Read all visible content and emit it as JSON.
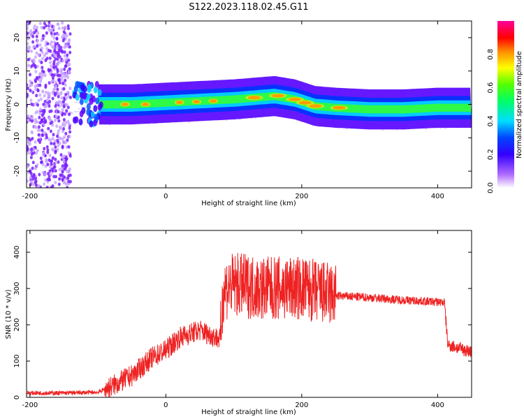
{
  "title": "S122.2023.118.02.45.G11",
  "chart_data": [
    {
      "type": "heatmap",
      "xlabel": "Height of straight line (km)",
      "ylabel": "Frequency (Hz)",
      "xlim": [
        -205,
        450
      ],
      "ylim": [
        -25,
        25
      ],
      "xticks": [
        -200,
        0,
        200,
        400
      ],
      "yticks": [
        -20,
        -10,
        0,
        10,
        20
      ],
      "colorbar": {
        "label": "Normalized spectral amplitude",
        "range": [
          0,
          1
        ],
        "ticks": [
          "0.0",
          "0.2",
          "0.4",
          "0.6",
          "0.8"
        ],
        "colors": [
          "#ffffff",
          "#8b00ff",
          "#0000ff",
          "#00ffff",
          "#00ff00",
          "#ffff00",
          "#ff0000",
          "#ff00aa"
        ]
      },
      "ridge": {
        "x": [
          -100,
          -50,
          0,
          50,
          100,
          130,
          160,
          190,
          220,
          250,
          300,
          350,
          400,
          450
        ],
        "y": [
          0,
          0,
          0.5,
          1,
          1.5,
          2,
          2.5,
          1.5,
          -0.5,
          -1,
          -1.5,
          -1.5,
          -1,
          -1
        ]
      }
    },
    {
      "type": "line",
      "xlabel": "Height of straight line (km)",
      "ylabel": "SNR (10 * v/v)",
      "xlim": [
        -205,
        450
      ],
      "ylim": [
        0,
        460
      ],
      "xticks": [
        -200,
        0,
        200,
        400
      ],
      "yticks": [
        0,
        100,
        200,
        300,
        400
      ],
      "color": "#ee2222",
      "series": [
        {
          "x": [
            -205,
            -150,
            -100,
            -80,
            -50,
            -20,
            0,
            20,
            50,
            80,
            85,
            100,
            150,
            200,
            250,
            300,
            350,
            410,
            415,
            450
          ],
          "y": [
            12,
            12,
            14,
            30,
            60,
            110,
            130,
            165,
            185,
            160,
            300,
            310,
            300,
            300,
            280,
            275,
            268,
            262,
            145,
            125
          ]
        }
      ]
    }
  ]
}
